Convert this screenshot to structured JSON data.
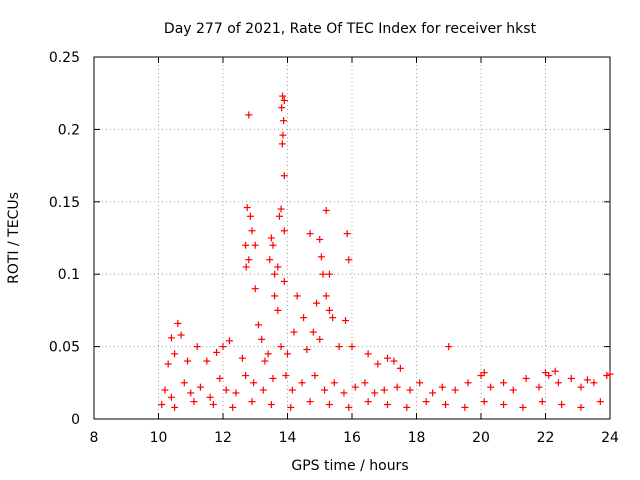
{
  "chart_data": {
    "type": "scatter",
    "title": "Day 277 of 2021, Rate Of TEC Index for receiver hkst",
    "xlabel": "GPS time / hours",
    "ylabel": "ROTI / TECUs",
    "xlim": [
      8,
      24
    ],
    "ylim": [
      0,
      0.25
    ],
    "x_ticks": [
      "8",
      "10",
      "12",
      "14",
      "16",
      "18",
      "20",
      "22",
      "24"
    ],
    "y_ticks": [
      "0",
      "0.05",
      "0.1",
      "0.15",
      "0.2",
      "0.25"
    ],
    "grid": true,
    "marker": "+",
    "color": "#ff0000",
    "series": [
      {
        "name": "ROTI",
        "points": [
          [
            12.8,
            0.21
          ],
          [
            13.85,
            0.223
          ],
          [
            13.9,
            0.22
          ],
          [
            13.82,
            0.215
          ],
          [
            13.88,
            0.206
          ],
          [
            13.86,
            0.196
          ],
          [
            13.84,
            0.19
          ],
          [
            13.9,
            0.168
          ],
          [
            12.75,
            0.146
          ],
          [
            12.85,
            0.14
          ],
          [
            12.9,
            0.13
          ],
          [
            12.7,
            0.12
          ],
          [
            12.8,
            0.11
          ],
          [
            12.72,
            0.105
          ],
          [
            13.0,
            0.12
          ],
          [
            13.5,
            0.125
          ],
          [
            13.55,
            0.12
          ],
          [
            13.45,
            0.11
          ],
          [
            13.6,
            0.1
          ],
          [
            13.7,
            0.105
          ],
          [
            13.9,
            0.13
          ],
          [
            13.75,
            0.14
          ],
          [
            13.8,
            0.145
          ],
          [
            14.7,
            0.128
          ],
          [
            15.2,
            0.144
          ],
          [
            15.0,
            0.124
          ],
          [
            15.05,
            0.112
          ],
          [
            15.1,
            0.1
          ],
          [
            15.3,
            0.1
          ],
          [
            15.85,
            0.128
          ],
          [
            15.9,
            0.11
          ],
          [
            13.0,
            0.09
          ],
          [
            13.6,
            0.085
          ],
          [
            14.3,
            0.085
          ],
          [
            13.9,
            0.095
          ],
          [
            15.2,
            0.085
          ],
          [
            14.9,
            0.08
          ],
          [
            15.3,
            0.075
          ],
          [
            15.4,
            0.07
          ],
          [
            14.5,
            0.07
          ],
          [
            13.7,
            0.075
          ],
          [
            15.8,
            0.068
          ],
          [
            10.6,
            0.066
          ],
          [
            10.7,
            0.058
          ],
          [
            10.4,
            0.056
          ],
          [
            13.1,
            0.065
          ],
          [
            13.2,
            0.055
          ],
          [
            14.2,
            0.06
          ],
          [
            14.8,
            0.06
          ],
          [
            12.2,
            0.054
          ],
          [
            12.0,
            0.05
          ],
          [
            19.0,
            0.05
          ],
          [
            11.2,
            0.05
          ],
          [
            10.5,
            0.045
          ],
          [
            15.0,
            0.055
          ],
          [
            15.6,
            0.05
          ],
          [
            16.0,
            0.05
          ],
          [
            16.5,
            0.045
          ],
          [
            11.8,
            0.046
          ],
          [
            10.9,
            0.04
          ],
          [
            11.5,
            0.04
          ],
          [
            12.6,
            0.042
          ],
          [
            13.4,
            0.045
          ],
          [
            13.3,
            0.04
          ],
          [
            14.6,
            0.048
          ],
          [
            17.3,
            0.04
          ],
          [
            17.1,
            0.042
          ],
          [
            16.8,
            0.038
          ],
          [
            17.5,
            0.035
          ],
          [
            10.3,
            0.038
          ],
          [
            13.8,
            0.05
          ],
          [
            14.0,
            0.045
          ],
          [
            10.2,
            0.02
          ],
          [
            10.4,
            0.015
          ],
          [
            10.8,
            0.025
          ],
          [
            11.0,
            0.018
          ],
          [
            11.3,
            0.022
          ],
          [
            11.6,
            0.015
          ],
          [
            11.9,
            0.028
          ],
          [
            12.1,
            0.02
          ],
          [
            12.4,
            0.018
          ],
          [
            12.7,
            0.03
          ],
          [
            12.95,
            0.025
          ],
          [
            13.25,
            0.02
          ],
          [
            13.55,
            0.028
          ],
          [
            13.95,
            0.03
          ],
          [
            14.15,
            0.02
          ],
          [
            14.45,
            0.025
          ],
          [
            14.85,
            0.03
          ],
          [
            15.15,
            0.02
          ],
          [
            15.45,
            0.025
          ],
          [
            15.75,
            0.018
          ],
          [
            16.1,
            0.022
          ],
          [
            16.4,
            0.025
          ],
          [
            16.7,
            0.018
          ],
          [
            17.0,
            0.02
          ],
          [
            17.4,
            0.022
          ],
          [
            17.8,
            0.02
          ],
          [
            18.1,
            0.025
          ],
          [
            18.5,
            0.018
          ],
          [
            18.8,
            0.022
          ],
          [
            19.2,
            0.02
          ],
          [
            19.6,
            0.025
          ],
          [
            20.0,
            0.03
          ],
          [
            20.3,
            0.022
          ],
          [
            20.7,
            0.025
          ],
          [
            21.0,
            0.02
          ],
          [
            21.4,
            0.028
          ],
          [
            21.8,
            0.022
          ],
          [
            22.1,
            0.03
          ],
          [
            22.4,
            0.025
          ],
          [
            22.8,
            0.028
          ],
          [
            23.1,
            0.022
          ],
          [
            23.5,
            0.025
          ],
          [
            23.9,
            0.03
          ],
          [
            24.0,
            0.031
          ],
          [
            20.1,
            0.032
          ],
          [
            22.0,
            0.032
          ],
          [
            22.3,
            0.033
          ],
          [
            23.3,
            0.027
          ],
          [
            10.1,
            0.01
          ],
          [
            10.5,
            0.008
          ],
          [
            11.1,
            0.012
          ],
          [
            11.7,
            0.01
          ],
          [
            12.3,
            0.008
          ],
          [
            12.9,
            0.012
          ],
          [
            13.5,
            0.01
          ],
          [
            14.1,
            0.008
          ],
          [
            14.7,
            0.012
          ],
          [
            15.3,
            0.01
          ],
          [
            15.9,
            0.008
          ],
          [
            16.5,
            0.012
          ],
          [
            17.1,
            0.01
          ],
          [
            17.7,
            0.008
          ],
          [
            18.3,
            0.012
          ],
          [
            18.9,
            0.01
          ],
          [
            19.5,
            0.008
          ],
          [
            20.1,
            0.012
          ],
          [
            20.7,
            0.01
          ],
          [
            21.3,
            0.008
          ],
          [
            21.9,
            0.012
          ],
          [
            22.5,
            0.01
          ],
          [
            23.1,
            0.008
          ],
          [
            23.7,
            0.012
          ]
        ]
      }
    ]
  }
}
